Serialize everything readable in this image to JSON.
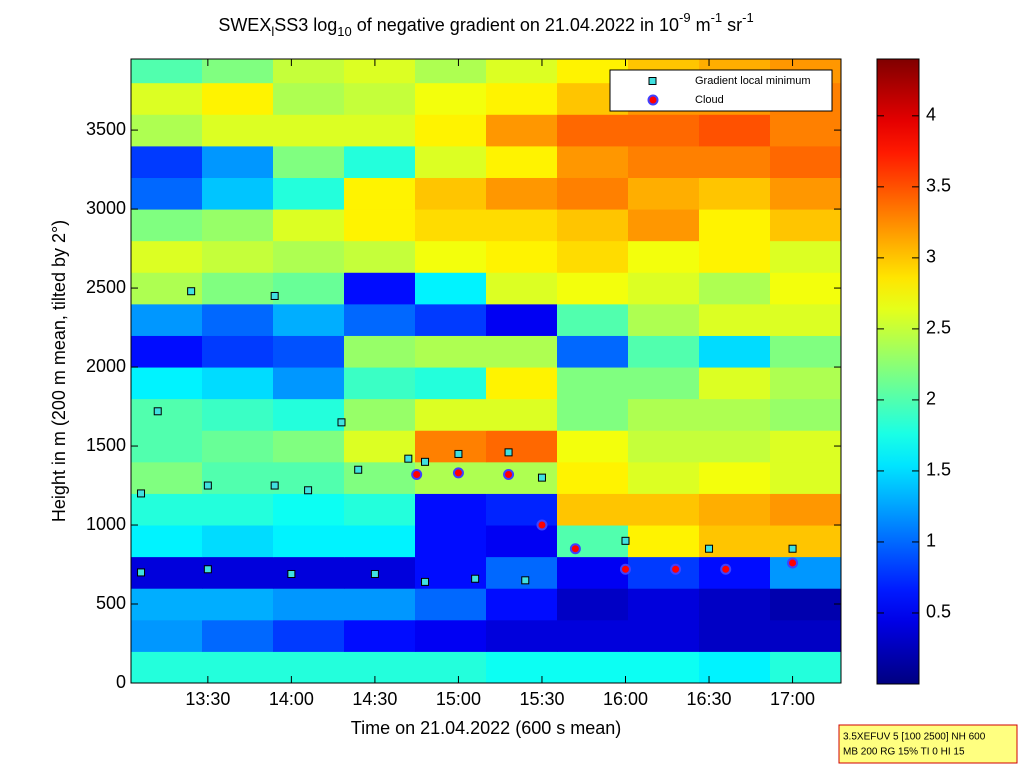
{
  "chart_data": {
    "type": "heatmap",
    "title": [
      "SWEX",
      "l",
      "SS3 log",
      "10",
      " of negative gradient on 21.04.2022 in 10",
      "-9",
      " m",
      "-1",
      " sr",
      "-1"
    ],
    "title_script": [
      "base",
      "sub",
      "base",
      "sub",
      "base",
      "super",
      "base",
      "super",
      "base",
      "super"
    ],
    "xlabel": "Time on 21.04.2022 (600 s mean)",
    "ylabel": "Height in m (200 m mean, tilted by 2°)",
    "xlim": [
      13.04,
      17.29
    ],
    "ylim": [
      0,
      3950
    ],
    "xticks": [
      {
        "value": 13.5,
        "label": "13:30"
      },
      {
        "value": 14,
        "label": "14:00"
      },
      {
        "value": 14.5,
        "label": "14:30"
      },
      {
        "value": 15,
        "label": "15:00"
      },
      {
        "value": 15.5,
        "label": "15:30"
      },
      {
        "value": 16,
        "label": "16:00"
      },
      {
        "value": 16.5,
        "label": "16:30"
      },
      {
        "value": 17,
        "label": "17:00"
      }
    ],
    "yticks": [
      0,
      500,
      1000,
      1500,
      2000,
      2500,
      3000,
      3500
    ],
    "x_bins": [
      13.04,
      13.465,
      13.89,
      14.315,
      14.74,
      15.165,
      15.59,
      16.015,
      16.44,
      16.865,
      17.29
    ],
    "y_bins": [
      0,
      200,
      400,
      600,
      800,
      1000,
      1200,
      1400,
      1600,
      1800,
      2000,
      2200,
      2400,
      2600,
      2800,
      3000,
      3200,
      3400,
      3600,
      3800,
      3950
    ],
    "z": [
      [
        1.8,
        1.8,
        1.8,
        1.8,
        1.8,
        1.7,
        1.7,
        1.7,
        1.6,
        1.8
      ],
      [
        1.2,
        1.0,
        0.8,
        0.6,
        0.5,
        0.4,
        0.4,
        0.4,
        0.3,
        0.3
      ],
      [
        1.3,
        1.3,
        1.2,
        1.2,
        1.0,
        0.6,
        0.3,
        0.4,
        0.3,
        0.2
      ],
      [
        0.4,
        0.4,
        0.4,
        0.4,
        0.6,
        1.0,
        0.5,
        0.8,
        0.6,
        1.2
      ],
      [
        1.6,
        1.5,
        1.6,
        1.6,
        0.6,
        0.5,
        2.0,
        2.8,
        3.0,
        3.0
      ],
      [
        1.8,
        1.8,
        1.7,
        1.8,
        0.6,
        0.7,
        3.0,
        3.0,
        3.1,
        3.2
      ],
      [
        2.2,
        2.0,
        2.0,
        2.2,
        2.4,
        2.4,
        2.8,
        2.6,
        2.7,
        2.6
      ],
      [
        2.0,
        2.1,
        2.2,
        2.6,
        3.3,
        3.4,
        2.7,
        2.5,
        2.5,
        2.6
      ],
      [
        2.0,
        1.9,
        1.8,
        2.3,
        2.6,
        2.6,
        2.2,
        2.4,
        2.4,
        2.3
      ],
      [
        1.6,
        1.5,
        1.2,
        1.9,
        1.8,
        2.8,
        2.2,
        2.2,
        2.6,
        2.4
      ],
      [
        0.6,
        0.8,
        0.9,
        2.3,
        2.4,
        2.4,
        1.0,
        2.0,
        1.5,
        2.2
      ],
      [
        1.2,
        1.0,
        1.3,
        1.0,
        0.8,
        0.5,
        2.0,
        2.4,
        2.6,
        2.6
      ],
      [
        2.4,
        2.2,
        2.1,
        0.6,
        1.6,
        2.6,
        2.7,
        2.6,
        2.4,
        2.7
      ],
      [
        2.6,
        2.5,
        2.4,
        2.5,
        2.7,
        2.8,
        2.9,
        2.7,
        2.8,
        2.6
      ],
      [
        2.2,
        2.3,
        2.6,
        2.8,
        2.9,
        2.9,
        3.0,
        3.2,
        2.8,
        3.0
      ],
      [
        1.0,
        1.4,
        1.8,
        2.8,
        3.0,
        3.2,
        3.3,
        3.1,
        3.0,
        3.2
      ],
      [
        0.8,
        1.2,
        2.2,
        1.8,
        2.6,
        2.8,
        3.2,
        3.3,
        3.3,
        3.4
      ],
      [
        2.4,
        2.6,
        2.6,
        2.6,
        2.8,
        3.2,
        3.4,
        3.4,
        3.5,
        3.3
      ],
      [
        2.6,
        2.8,
        2.4,
        2.5,
        2.7,
        2.8,
        3.0,
        3.2,
        3.2,
        3.3
      ],
      [
        2.0,
        2.2,
        2.5,
        2.6,
        2.4,
        2.6,
        2.8,
        3.0,
        3.1,
        3.2
      ]
    ],
    "colormap": "jet",
    "clim": [
      0,
      4.4
    ],
    "colorbar_ticks": [
      0.5,
      1,
      1.5,
      2,
      2.5,
      3,
      3.5,
      4
    ],
    "series": [
      {
        "name": "Gradient local minimum",
        "color": "#40e0e0",
        "edge": "#000000",
        "marker": "square",
        "x": [
          13.1,
          13.5,
          14.0,
          14.5,
          14.8,
          15.1,
          15.4,
          13.1,
          13.5,
          13.9,
          14.1,
          14.4,
          14.7,
          15.0,
          15.3,
          15.5,
          16.0,
          16.5,
          17.0,
          13.2,
          13.4,
          13.9,
          14.3,
          14.8
        ],
        "y": [
          700,
          720,
          690,
          690,
          640,
          660,
          650,
          1200,
          1250,
          1250,
          1220,
          1350,
          1420,
          1450,
          1460,
          1300,
          900,
          850,
          850,
          1720,
          2480,
          2450,
          1650,
          1400
        ]
      },
      {
        "name": "Cloud",
        "color": "#ff0000",
        "edge": "#4040ff",
        "marker": "circle",
        "x": [
          14.75,
          15.0,
          15.3,
          15.5,
          15.7,
          16.0,
          16.3,
          16.6,
          17.0
        ],
        "y": [
          1320,
          1330,
          1320,
          1000,
          850,
          720,
          720,
          720,
          760
        ]
      }
    ],
    "legend": "upper right",
    "info_box": [
      "3.5XEFUV 5 [100 2500] NH 600",
      "MB 200 RG 15% TI 0 HI 15"
    ]
  }
}
